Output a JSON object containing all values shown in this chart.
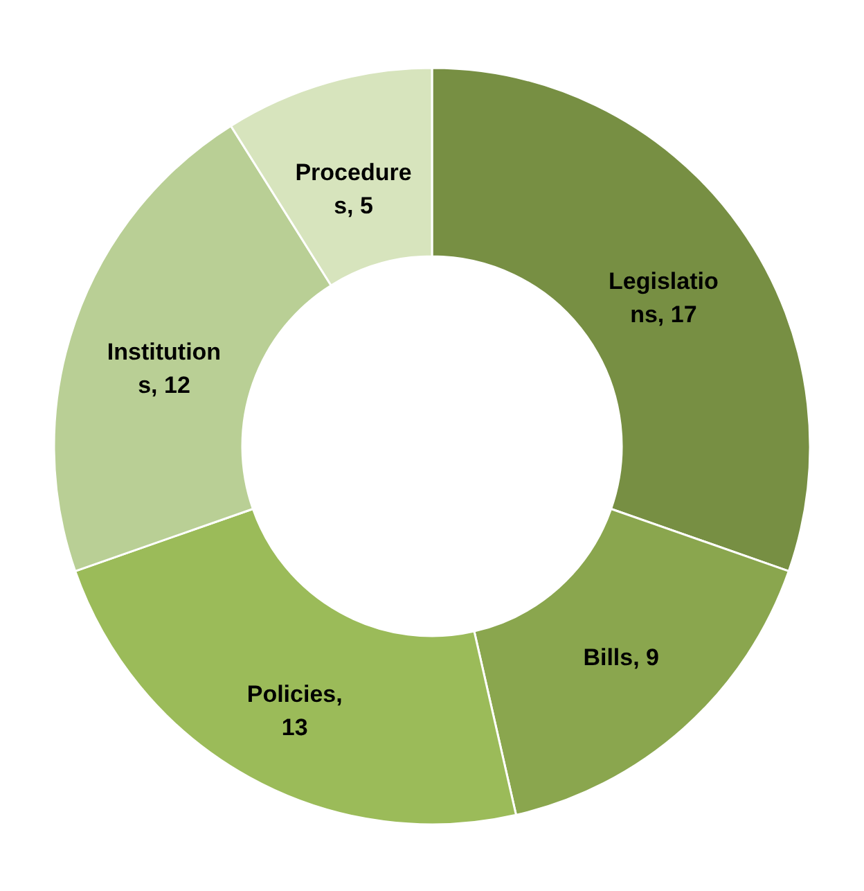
{
  "chart_data": {
    "type": "donut",
    "categories": [
      null,
      null,
      null,
      null,
      null
    ],
    "values": [
      17,
      9,
      13,
      12,
      5
    ],
    "colors": [
      "#778f43",
      "#8aa64e",
      "#9bbb59",
      "#b9cf95",
      "#d7e4bd"
    ],
    "value_labels": [
      "Legislatio\nns, 17",
      "Bills, 9",
      "Policies,\n13",
      "Institution\ns, 12",
      "Procedure\ns, 5"
    ]
  }
}
